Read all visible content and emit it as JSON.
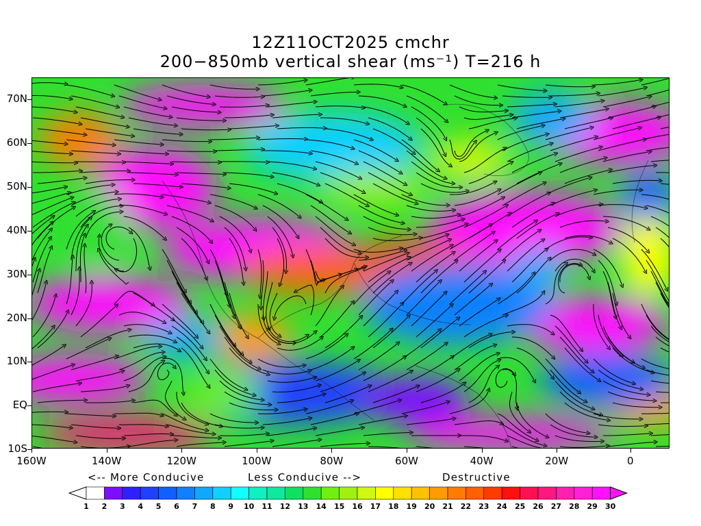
{
  "title": {
    "line1": "12Z11OCT2025 cmchr",
    "line2": "200−850mb vertical shear (ms⁻¹) T=216 h"
  },
  "lat_labels": [
    "70N",
    "60N",
    "50N",
    "40N",
    "30N",
    "20N",
    "10N",
    "EQ",
    "10S"
  ],
  "lon_labels": [
    "160W",
    "140W",
    "120W",
    "100W",
    "80W",
    "60W",
    "40W",
    "20W",
    "0"
  ],
  "conduciveness": {
    "more": "<-- More Conducive",
    "less": "Less Conducive -->",
    "destructive": "Destructive"
  },
  "colorbar": {
    "labels": [
      "1",
      "2",
      "3",
      "4",
      "5",
      "6",
      "7",
      "8",
      "9",
      "10",
      "11",
      "12",
      "13",
      "14",
      "15",
      "16",
      "17",
      "18",
      "19",
      "20",
      "21",
      "22",
      "23",
      "24",
      "25",
      "26",
      "27",
      "28",
      "29",
      "30"
    ],
    "colors": [
      "#ffffff",
      "#7a10ff",
      "#3020ff",
      "#2040ff",
      "#1060ff",
      "#1080ff",
      "#10a8ff",
      "#10d0ff",
      "#10ffff",
      "#10f0c0",
      "#10e8a0",
      "#10e060",
      "#30e030",
      "#70f010",
      "#a0f010",
      "#d0f810",
      "#ffff00",
      "#ffe000",
      "#ffc000",
      "#ff9c00",
      "#ff7c00",
      "#ff6000",
      "#ff3c00",
      "#ff1010",
      "#ff1050",
      "#ff1880",
      "#ff20b0",
      "#ff20d8",
      "#ff10ff"
    ]
  }
}
